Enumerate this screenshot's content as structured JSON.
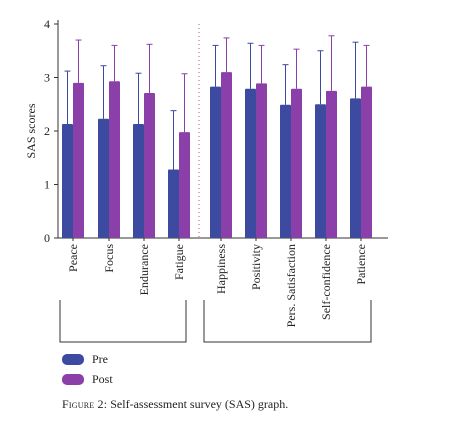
{
  "chart_data": {
    "type": "bar",
    "ylabel": "SAS scores",
    "ylim": [
      0,
      4
    ],
    "yticks": [
      0,
      1,
      2,
      3,
      4
    ],
    "categories": [
      "Peace",
      "Focus",
      "Endurance",
      "Fatigue",
      "Happiness",
      "Positivity",
      "Pers. Satisfaction",
      "Self-confidence",
      "Patience"
    ],
    "series": [
      {
        "name": "Pre",
        "color": "#3c4aa0",
        "values": [
          2.13,
          2.23,
          2.13,
          1.28,
          2.83,
          2.79,
          2.49,
          2.5,
          2.61
        ],
        "error_upper": [
          3.12,
          3.22,
          3.08,
          2.38,
          3.6,
          3.64,
          3.24,
          3.5,
          3.66
        ]
      },
      {
        "name": "Post",
        "color": "#8b3fa8",
        "values": [
          2.9,
          2.93,
          2.71,
          1.98,
          3.1,
          2.89,
          2.79,
          2.75,
          2.83
        ],
        "error_upper": [
          3.7,
          3.6,
          3.62,
          3.07,
          3.74,
          3.6,
          3.53,
          3.78,
          3.6
        ]
      }
    ],
    "groups": [
      {
        "start": 0,
        "end": 3
      },
      {
        "start": 4,
        "end": 8
      }
    ],
    "legend_position": "bottom-left",
    "grid": false
  },
  "legend": {
    "pre": "Pre",
    "post": "Post"
  },
  "colors": {
    "pre": "#3c4aa0",
    "post": "#8b3fa8",
    "divider": "#c0508a"
  },
  "caption": {
    "figure": "Figure 2:",
    "text": " Self-assessment survey (SAS) graph."
  }
}
